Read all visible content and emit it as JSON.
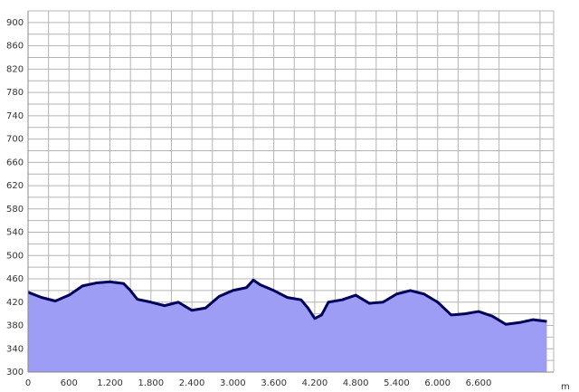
{
  "chart_data": {
    "type": "area",
    "x_unit": "m",
    "x": [
      0,
      200,
      400,
      600,
      800,
      1000,
      1200,
      1400,
      1500,
      1600,
      1800,
      2000,
      2200,
      2400,
      2600,
      2800,
      3000,
      3200,
      3300,
      3400,
      3600,
      3800,
      4000,
      4100,
      4200,
      4300,
      4400,
      4600,
      4800,
      5000,
      5200,
      5400,
      5600,
      5800,
      6000,
      6200,
      6400,
      6600,
      6800,
      7000,
      7200,
      7400,
      7600
    ],
    "values": [
      437,
      428,
      422,
      432,
      448,
      453,
      455,
      452,
      440,
      425,
      420,
      414,
      420,
      406,
      410,
      430,
      440,
      445,
      458,
      450,
      440,
      428,
      424,
      410,
      392,
      398,
      420,
      424,
      432,
      418,
      420,
      434,
      440,
      434,
      420,
      398,
      400,
      404,
      396,
      382,
      385,
      390,
      387
    ],
    "fill_color": "#9d9df5",
    "line_color": "#00005a",
    "xlim": [
      0,
      7700
    ],
    "ylim": [
      300,
      920
    ],
    "xticks": [
      0,
      600,
      {
        "value": 1200,
        "label": "1.200"
      },
      {
        "value": 1800,
        "label": "1.800"
      },
      {
        "value": 2400,
        "label": "2.400"
      },
      {
        "value": 3000,
        "label": "3.000"
      },
      {
        "value": 3600,
        "label": "3.600"
      },
      {
        "value": 4200,
        "label": "4.200"
      },
      {
        "value": 4800,
        "label": "4.800"
      },
      {
        "value": 5400,
        "label": "5.400"
      },
      {
        "value": 6000,
        "label": "6.000"
      },
      {
        "value": 6600,
        "label": "6.600"
      }
    ],
    "yticks": [
      300,
      340,
      380,
      420,
      460,
      500,
      540,
      580,
      620,
      660,
      700,
      740,
      780,
      820,
      860,
      900
    ],
    "grid": true
  }
}
